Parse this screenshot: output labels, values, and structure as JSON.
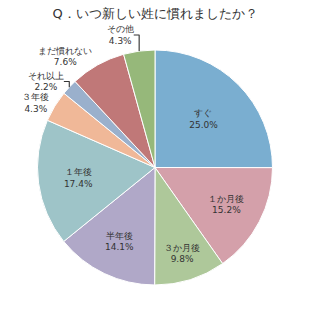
{
  "chart_data": {
    "type": "pie",
    "title": "Q．いつ新しい姓に慣れましたか？",
    "categories": [
      "すぐ",
      "１か月後",
      "３か月後",
      "半年後",
      "１年後",
      "３年後",
      "それ以上",
      "まだ慣れない",
      "その他"
    ],
    "values": [
      25.0,
      15.2,
      9.8,
      14.1,
      17.4,
      4.3,
      2.2,
      7.6,
      4.3
    ],
    "value_labels": [
      "25.0%",
      "15.2%",
      "9.8%",
      "14.1%",
      "17.4%",
      "4.3%",
      "2.2%",
      "7.6%",
      "4.3%"
    ],
    "colors": [
      "#7aaed0",
      "#d4a0aa",
      "#aec89a",
      "#b0a8c8",
      "#9ec4c8",
      "#f0b898",
      "#9ab0cc",
      "#c07878",
      "#96b87a"
    ],
    "data_labels": true
  }
}
